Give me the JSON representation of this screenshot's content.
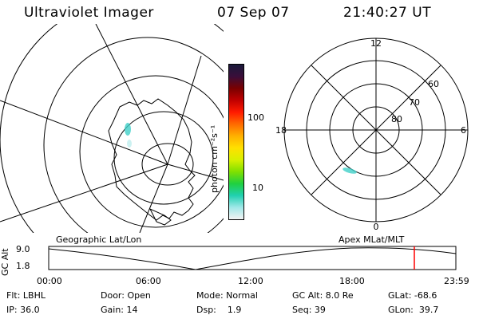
{
  "header": {
    "instrument": "Ultraviolet Imager",
    "date": "07 Sep 07",
    "time": "21:40:27 UT"
  },
  "colorbar": {
    "unit_label": "photon cm⁻²s⁻¹",
    "ticks": [
      "100",
      "10"
    ],
    "colors": [
      "#1a1a3a",
      "#3a0e3a",
      "#7a0000",
      "#c00000",
      "#ff1a00",
      "#ff6a00",
      "#ffb000",
      "#ffe000",
      "#d8f000",
      "#80e000",
      "#20d040",
      "#20d0b0",
      "#a0e8e8",
      "#f4f4f4"
    ]
  },
  "left_map": {
    "label": "Geographic Lat/Lon"
  },
  "right_map": {
    "label": "Apex MLat/MLT",
    "mlt_labels": {
      "top": "12",
      "left": "18",
      "right": "6",
      "bottom": "0"
    },
    "lat_labels": [
      "60",
      "70",
      "80"
    ]
  },
  "altitude_plot": {
    "ylabel": "GC Alt",
    "ytick_top": "9.0",
    "ytick_bottom": "1.8",
    "xticks": [
      "00:00",
      "06:00",
      "12:00",
      "18:00",
      "23:59"
    ],
    "marker_color": "#ff0000"
  },
  "status": {
    "row1": {
      "filter": "Flt: LBHL",
      "door": "Door: Open",
      "mode": "Mode: Normal",
      "gc_alt": "GC Alt: 8.0 Re",
      "glat": "GLat: -68.6"
    },
    "row2": {
      "ip": "IP: 36.0",
      "gain": "Gain: 14",
      "dsp": "Dsp:    1.9",
      "seq": "Seq: 39",
      "glon": "GLon:  39.7"
    }
  }
}
